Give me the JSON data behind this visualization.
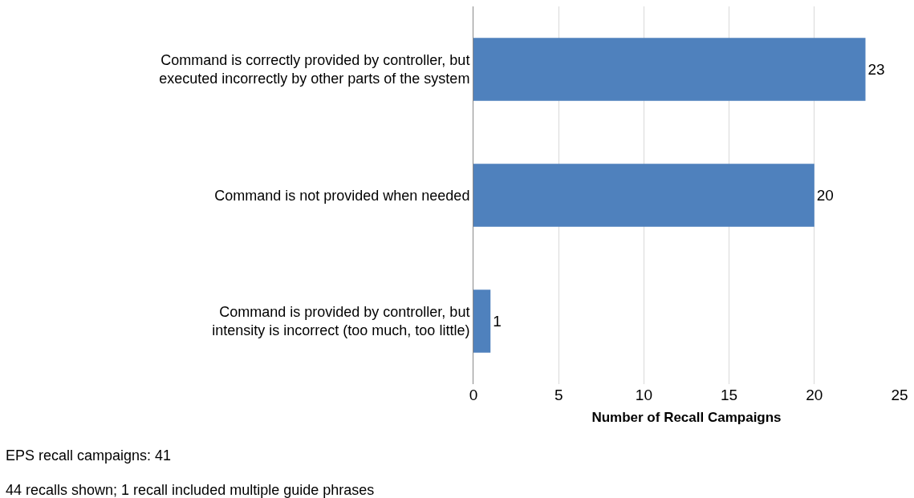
{
  "chart_data": {
    "type": "bar",
    "orientation": "horizontal",
    "xlabel": "Number of Recall Campaigns",
    "categories": [
      "Command is correctly provided by controller, but\nexecuted incorrectly by other parts of the system",
      "Command is not provided when needed",
      "Command is provided by controller, but\nintensity is incorrect (too much, too little)"
    ],
    "values": [
      23,
      20,
      1
    ],
    "color": "#4f81bd",
    "data_labels": true,
    "grid": "x",
    "legend": false,
    "xlim": [
      0,
      25
    ],
    "xticks": [
      0,
      5,
      10,
      15,
      20,
      25
    ],
    "annotations": [
      "EPS recall campaigns: 41",
      "44 recalls shown; 1 recall included multiple guide phrases"
    ]
  }
}
